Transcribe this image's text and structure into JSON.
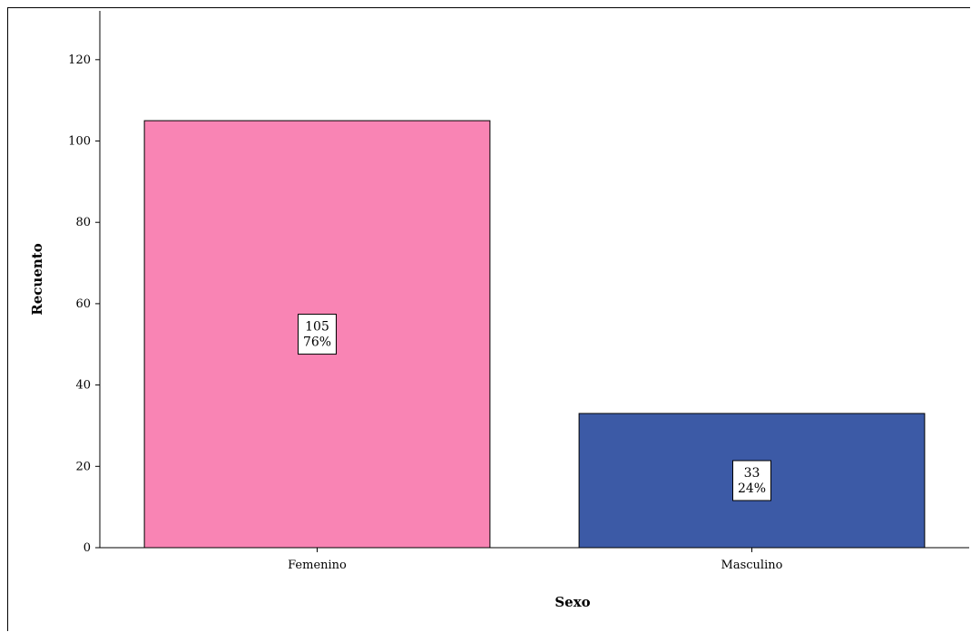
{
  "chart_data": {
    "type": "bar",
    "title": "",
    "xlabel": "Sexo",
    "ylabel": "Recuento",
    "categories": [
      "Femenino",
      "Masculino"
    ],
    "values": [
      105,
      33
    ],
    "percent_labels": [
      "76%",
      "24%"
    ],
    "colors": [
      "#f984b4",
      "#3c5aa6"
    ],
    "ylim": [
      0,
      132
    ],
    "yticks": [
      0,
      20,
      40,
      60,
      80,
      100,
      120
    ],
    "grid": false,
    "legend": "none"
  }
}
